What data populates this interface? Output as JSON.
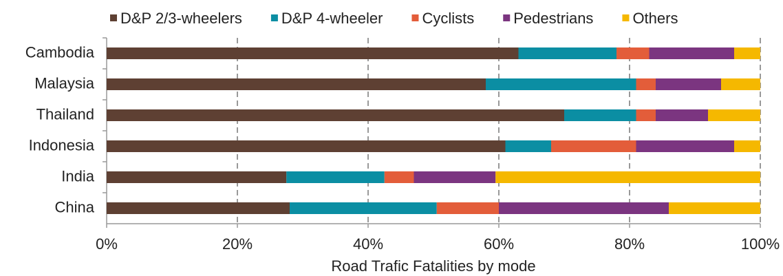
{
  "chart_data": {
    "type": "stacked-bar-horizontal",
    "x_label": "Road Trafic Fatalities by mode",
    "categories": [
      "Cambodia",
      "Malaysia",
      "Thailand",
      "Indonesia",
      "India",
      "China"
    ],
    "series": [
      {
        "name": "D&P 2/3-wheelers",
        "color": "#5e4033",
        "values": [
          63,
          58,
          70,
          61,
          27.5,
          28
        ]
      },
      {
        "name": "D&P 4-wheeler",
        "color": "#0b8ea3",
        "values": [
          15,
          23,
          11,
          7,
          15,
          22.5
        ]
      },
      {
        "name": "Cyclists",
        "color": "#e35d3a",
        "values": [
          5,
          3,
          3,
          13,
          4.5,
          9.5
        ]
      },
      {
        "name": "Pedestrians",
        "color": "#7b3580",
        "values": [
          13,
          10,
          8,
          15,
          12.5,
          26
        ]
      },
      {
        "name": "Others",
        "color": "#f5b800",
        "values": [
          4,
          6,
          8,
          4,
          40.5,
          14
        ]
      }
    ],
    "xlim": [
      0,
      100
    ],
    "xticks": [
      {
        "value": 0,
        "label": "0%"
      },
      {
        "value": 20,
        "label": "20%"
      },
      {
        "value": 40,
        "label": "40%"
      },
      {
        "value": 60,
        "label": "60%"
      },
      {
        "value": 80,
        "label": "80%"
      },
      {
        "value": 100,
        "label": "100%"
      }
    ],
    "grid": true,
    "legend": "top"
  }
}
